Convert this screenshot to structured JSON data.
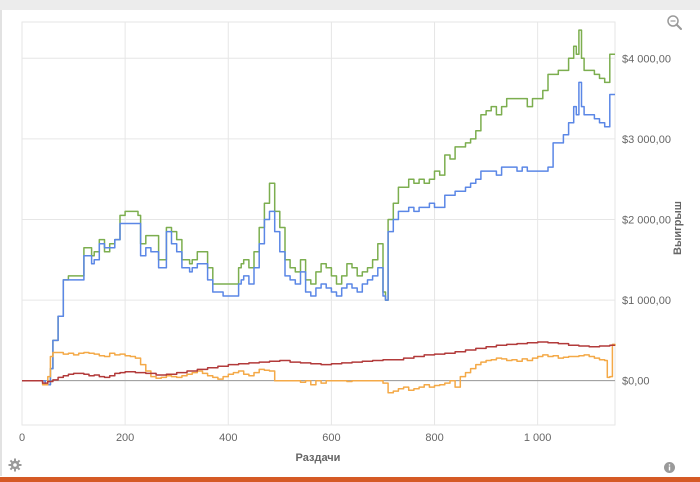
{
  "icons": {
    "zoom": "zoom-icon",
    "settings": "gear-icon",
    "info": "info-icon"
  },
  "chart_data": {
    "type": "line",
    "title": "",
    "xlabel": "Раздачи",
    "ylabel": "Выигрыш",
    "xlim": [
      0,
      1150
    ],
    "ylim": [
      -550,
      4450
    ],
    "grid": true,
    "y_axis_side": "right",
    "x_ticks": [
      0,
      200,
      400,
      600,
      800,
      1000
    ],
    "x_tick_labels": [
      "0",
      "200",
      "400",
      "600",
      "800",
      "1 000"
    ],
    "y_ticks": [
      0,
      1000,
      2000,
      3000,
      4000
    ],
    "y_tick_labels": [
      "$0,00",
      "$1 000,00",
      "$2 000,00",
      "$3 000,00",
      "$4 000,00"
    ],
    "series": [
      {
        "color": "#7cae4f",
        "x": [
          0,
          30,
          45,
          55,
          60,
          70,
          80,
          90,
          100,
          110,
          120,
          130,
          135,
          140,
          150,
          160,
          170,
          180,
          190,
          200,
          210,
          220,
          225,
          230,
          235,
          240,
          250,
          260,
          265,
          270,
          280,
          290,
          300,
          310,
          320,
          325,
          330,
          340,
          350,
          360,
          370,
          380,
          390,
          400,
          410,
          420,
          425,
          430,
          440,
          450,
          460,
          470,
          480,
          490,
          500,
          510,
          520,
          530,
          540,
          550,
          560,
          570,
          580,
          590,
          600,
          610,
          620,
          630,
          640,
          650,
          660,
          670,
          680,
          690,
          700,
          705,
          710,
          720,
          730,
          740,
          750,
          760,
          770,
          780,
          790,
          800,
          810,
          820,
          830,
          840,
          850,
          860,
          870,
          880,
          890,
          900,
          910,
          920,
          930,
          940,
          950,
          960,
          970,
          980,
          990,
          1000,
          1010,
          1020,
          1030,
          1040,
          1050,
          1060,
          1070,
          1075,
          1080,
          1085,
          1090,
          1100,
          1110,
          1120,
          1130,
          1140,
          1150
        ],
        "y": [
          0,
          0,
          -50,
          150,
          500,
          800,
          1250,
          1300,
          1300,
          1300,
          1650,
          1650,
          1550,
          1600,
          1750,
          1600,
          1700,
          1750,
          2050,
          2100,
          2100,
          2100,
          2050,
          1700,
          1700,
          1800,
          1800,
          1800,
          1500,
          1500,
          1900,
          1850,
          1750,
          1500,
          1500,
          1450,
          1500,
          1600,
          1600,
          1400,
          1200,
          1200,
          1200,
          1200,
          1200,
          1400,
          1450,
          1500,
          1400,
          1600,
          1900,
          2200,
          2450,
          2100,
          1900,
          1500,
          1400,
          1350,
          1500,
          1250,
          1200,
          1350,
          1450,
          1400,
          1300,
          1200,
          1300,
          1450,
          1400,
          1300,
          1350,
          1400,
          1500,
          1700,
          1100,
          1000,
          2000,
          2200,
          2400,
          2400,
          2500,
          2450,
          2500,
          2450,
          2500,
          2600,
          2550,
          2800,
          2750,
          2900,
          2900,
          2950,
          3000,
          3100,
          3300,
          3350,
          3400,
          3300,
          3400,
          3500,
          3500,
          3500,
          3500,
          3400,
          3500,
          3500,
          3600,
          3800,
          3800,
          3850,
          3850,
          4000,
          4150,
          4050,
          4350,
          4000,
          3850,
          3850,
          3800,
          3750,
          3700,
          4050,
          4050
        ]
      },
      {
        "color": "#5b87e6",
        "x": [
          0,
          30,
          45,
          55,
          60,
          70,
          80,
          90,
          100,
          110,
          120,
          130,
          135,
          140,
          150,
          160,
          170,
          180,
          190,
          200,
          210,
          220,
          225,
          230,
          235,
          240,
          250,
          260,
          265,
          270,
          280,
          290,
          300,
          310,
          320,
          325,
          330,
          340,
          350,
          360,
          370,
          380,
          390,
          400,
          410,
          420,
          425,
          430,
          440,
          450,
          460,
          470,
          480,
          490,
          500,
          510,
          520,
          530,
          540,
          550,
          560,
          570,
          580,
          590,
          600,
          610,
          620,
          630,
          640,
          650,
          660,
          670,
          680,
          690,
          700,
          705,
          710,
          720,
          730,
          740,
          750,
          760,
          770,
          780,
          790,
          800,
          810,
          820,
          830,
          840,
          850,
          860,
          870,
          880,
          890,
          900,
          910,
          920,
          930,
          940,
          950,
          960,
          970,
          980,
          990,
          1000,
          1010,
          1020,
          1030,
          1040,
          1050,
          1060,
          1070,
          1075,
          1080,
          1085,
          1090,
          1100,
          1110,
          1120,
          1130,
          1140,
          1150
        ],
        "y": [
          0,
          0,
          -50,
          150,
          500,
          800,
          1250,
          1250,
          1250,
          1250,
          1550,
          1550,
          1450,
          1500,
          1700,
          1650,
          1650,
          1750,
          1950,
          1950,
          1950,
          1950,
          1950,
          1550,
          1550,
          1650,
          1600,
          1600,
          1400,
          1400,
          1850,
          1700,
          1600,
          1400,
          1400,
          1350,
          1400,
          1450,
          1450,
          1250,
          1100,
          1100,
          1050,
          1050,
          1050,
          1200,
          1250,
          1300,
          1200,
          1400,
          1700,
          2000,
          2100,
          1850,
          1600,
          1300,
          1250,
          1200,
          1350,
          1100,
          1050,
          1150,
          1200,
          1150,
          1100,
          1050,
          1150,
          1200,
          1150,
          1100,
          1200,
          1250,
          1300,
          1400,
          1050,
          1000,
          1850,
          2000,
          2100,
          2100,
          2150,
          2100,
          2150,
          2150,
          2200,
          2150,
          2150,
          2300,
          2300,
          2350,
          2350,
          2400,
          2450,
          2500,
          2600,
          2600,
          2600,
          2550,
          2650,
          2650,
          2650,
          2600,
          2650,
          2600,
          2600,
          2600,
          2600,
          2650,
          2950,
          2950,
          3050,
          3200,
          3400,
          3300,
          3700,
          3400,
          3300,
          3300,
          3250,
          3200,
          3150,
          3550,
          3550
        ]
      },
      {
        "color": "#f4a947",
        "x": [
          0,
          20,
          40,
          50,
          55,
          60,
          70,
          80,
          90,
          100,
          110,
          120,
          130,
          140,
          150,
          160,
          170,
          180,
          190,
          200,
          210,
          220,
          230,
          240,
          250,
          260,
          270,
          280,
          290,
          300,
          310,
          320,
          330,
          340,
          350,
          360,
          370,
          380,
          390,
          400,
          410,
          420,
          430,
          440,
          450,
          460,
          470,
          480,
          490,
          500,
          510,
          520,
          530,
          540,
          550,
          560,
          570,
          580,
          590,
          600,
          610,
          620,
          630,
          640,
          650,
          660,
          670,
          680,
          690,
          700,
          710,
          720,
          730,
          740,
          750,
          760,
          770,
          780,
          790,
          800,
          810,
          820,
          830,
          840,
          850,
          860,
          870,
          880,
          890,
          900,
          910,
          920,
          930,
          940,
          950,
          960,
          970,
          980,
          990,
          1000,
          1010,
          1020,
          1030,
          1040,
          1050,
          1060,
          1070,
          1080,
          1090,
          1100,
          1110,
          1120,
          1130,
          1135,
          1140,
          1145,
          1150
        ],
        "y": [
          0,
          0,
          -50,
          50,
          300,
          350,
          350,
          330,
          340,
          320,
          340,
          350,
          340,
          330,
          310,
          300,
          340,
          320,
          330,
          310,
          300,
          280,
          200,
          120,
          50,
          30,
          40,
          60,
          50,
          40,
          60,
          80,
          100,
          120,
          90,
          60,
          40,
          20,
          50,
          80,
          100,
          120,
          80,
          60,
          100,
          140,
          130,
          120,
          0,
          0,
          0,
          0,
          0,
          -20,
          0,
          -50,
          0,
          -30,
          0,
          0,
          0,
          0,
          -10,
          0,
          0,
          0,
          0,
          0,
          0,
          -30,
          -150,
          -130,
          -100,
          -80,
          -120,
          -100,
          -80,
          -50,
          -80,
          -60,
          -50,
          -30,
          0,
          -80,
          50,
          100,
          150,
          200,
          230,
          250,
          260,
          280,
          270,
          250,
          260,
          240,
          270,
          250,
          280,
          300,
          320,
          300,
          310,
          280,
          290,
          300,
          300,
          310,
          320,
          300,
          280,
          260,
          250,
          40,
          50,
          450,
          430
        ]
      },
      {
        "color": "#b23a3a",
        "x": [
          0,
          20,
          40,
          50,
          60,
          70,
          80,
          90,
          100,
          110,
          120,
          130,
          140,
          150,
          160,
          170,
          180,
          190,
          200,
          220,
          240,
          260,
          280,
          300,
          320,
          340,
          360,
          380,
          400,
          420,
          440,
          460,
          480,
          500,
          520,
          540,
          560,
          580,
          600,
          620,
          640,
          660,
          680,
          700,
          720,
          740,
          760,
          780,
          800,
          820,
          840,
          860,
          880,
          900,
          920,
          940,
          960,
          980,
          1000,
          1020,
          1040,
          1060,
          1080,
          1100,
          1120,
          1140,
          1150
        ],
        "y": [
          0,
          0,
          -30,
          -10,
          10,
          40,
          60,
          80,
          90,
          90,
          80,
          60,
          70,
          50,
          40,
          60,
          90,
          100,
          110,
          100,
          90,
          70,
          80,
          100,
          120,
          140,
          160,
          180,
          200,
          210,
          220,
          230,
          240,
          250,
          230,
          220,
          210,
          200,
          210,
          220,
          230,
          240,
          250,
          260,
          260,
          280,
          300,
          320,
          330,
          340,
          360,
          380,
          400,
          420,
          440,
          450,
          460,
          470,
          480,
          470,
          460,
          440,
          430,
          420,
          430,
          440,
          440
        ]
      }
    ]
  }
}
